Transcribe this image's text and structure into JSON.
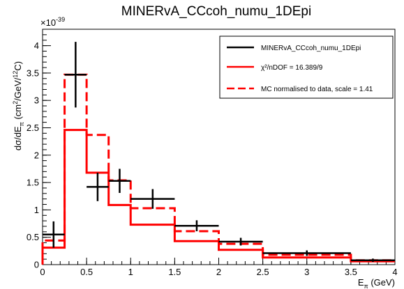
{
  "chart_data": {
    "type": "histogram",
    "title": "MINERvA_CCcoh_numu_1DEpi",
    "xlabel": "Eπ (GeV)",
    "ylabel": "dσ/dEπ (cm²/GeV/¹²C)",
    "y_exponent_label": "×10",
    "y_exponent": "-39",
    "xlim": [
      0,
      4
    ],
    "ylim": [
      0,
      4.3
    ],
    "grid": false,
    "legend_position": "top-right",
    "x_ticks": [
      {
        "value": 0,
        "label": "0"
      },
      {
        "value": 0.5,
        "label": "0.5"
      },
      {
        "value": 1,
        "label": "1"
      },
      {
        "value": 1.5,
        "label": "1.5"
      },
      {
        "value": 2,
        "label": "2"
      },
      {
        "value": 2.5,
        "label": "2.5"
      },
      {
        "value": 3,
        "label": "3"
      },
      {
        "value": 3.5,
        "label": "3.5"
      },
      {
        "value": 4,
        "label": "4"
      }
    ],
    "y_ticks": [
      {
        "value": 0,
        "label": "0"
      },
      {
        "value": 0.5,
        "label": "0.5"
      },
      {
        "value": 1,
        "label": "1"
      },
      {
        "value": 1.5,
        "label": "1.5"
      },
      {
        "value": 2,
        "label": "2"
      },
      {
        "value": 2.5,
        "label": "2.5"
      },
      {
        "value": 3,
        "label": "3"
      },
      {
        "value": 3.5,
        "label": "3.5"
      },
      {
        "value": 4,
        "label": "4"
      }
    ],
    "bin_edges": [
      0,
      0.25,
      0.5,
      0.75,
      1.0,
      1.5,
      2.0,
      2.5,
      3.5,
      4.0
    ],
    "series": [
      {
        "name": "MINERvA_CCcoh_numu_1DEpi",
        "kind": "data-points",
        "color": "#000000",
        "values": [
          0.55,
          3.47,
          1.42,
          1.53,
          1.2,
          0.71,
          0.42,
          0.21,
          0.08
        ],
        "errors": [
          0.24,
          0.6,
          0.26,
          0.22,
          0.18,
          0.1,
          0.07,
          0.05,
          0.03
        ]
      },
      {
        "name": "χ²/nDOF = 16.389/9",
        "kind": "histogram-solid",
        "color": "#ff0000",
        "values": [
          0.31,
          2.46,
          1.68,
          1.09,
          0.73,
          0.43,
          0.27,
          0.13,
          0.06
        ]
      },
      {
        "name": "MC normalised to data, scale = 1.41",
        "kind": "histogram-dashed",
        "color": "#ff0000",
        "values": [
          0.44,
          3.47,
          2.37,
          1.54,
          1.03,
          0.61,
          0.38,
          0.18,
          0.08
        ]
      }
    ]
  }
}
